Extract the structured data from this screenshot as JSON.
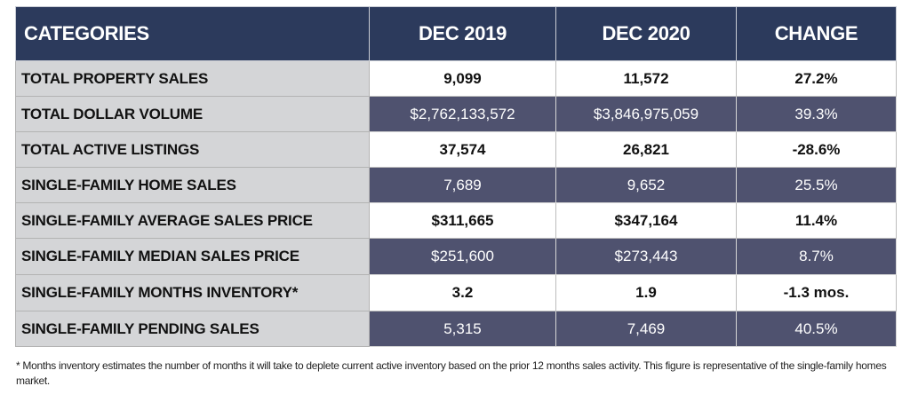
{
  "table": {
    "headers": [
      "CATEGORIES",
      "DEC 2019",
      "DEC 2020",
      "CHANGE"
    ],
    "rows": [
      {
        "category": "TOTAL PROPERTY SALES",
        "dec2019": "9,099",
        "dec2020": "11,572",
        "change": "27.2%"
      },
      {
        "category": "TOTAL DOLLAR VOLUME",
        "dec2019": "$2,762,133,572",
        "dec2020": "$3,846,975,059",
        "change": "39.3%"
      },
      {
        "category": "TOTAL ACTIVE LISTINGS",
        "dec2019": "37,574",
        "dec2020": "26,821",
        "change": "-28.6%"
      },
      {
        "category": "SINGLE-FAMILY HOME SALES",
        "dec2019": "7,689",
        "dec2020": "9,652",
        "change": "25.5%"
      },
      {
        "category": "SINGLE-FAMILY AVERAGE SALES PRICE",
        "dec2019": "$311,665",
        "dec2020": "$347,164",
        "change": "11.4%"
      },
      {
        "category": "SINGLE-FAMILY MEDIAN SALES PRICE",
        "dec2019": "$251,600",
        "dec2020": "$273,443",
        "change": "8.7%"
      },
      {
        "category": "SINGLE-FAMILY MONTHS INVENTORY*",
        "dec2019": "3.2",
        "dec2020": "1.9",
        "change": "-1.3 mos."
      },
      {
        "category": "SINGLE-FAMILY PENDING SALES",
        "dec2019": "5,315",
        "dec2020": "7,469",
        "change": "40.5%"
      }
    ]
  },
  "colors": {
    "header_bg": "#2c3a5c",
    "category_bg": "#d4d5d7",
    "dark_row_bg": "#4f526f",
    "light_row_bg": "#ffffff"
  },
  "footnote": "* Months inventory estimates the number of months it will take to deplete current active inventory based on the prior 12 months sales activity. This figure is representative of the single-family homes market."
}
